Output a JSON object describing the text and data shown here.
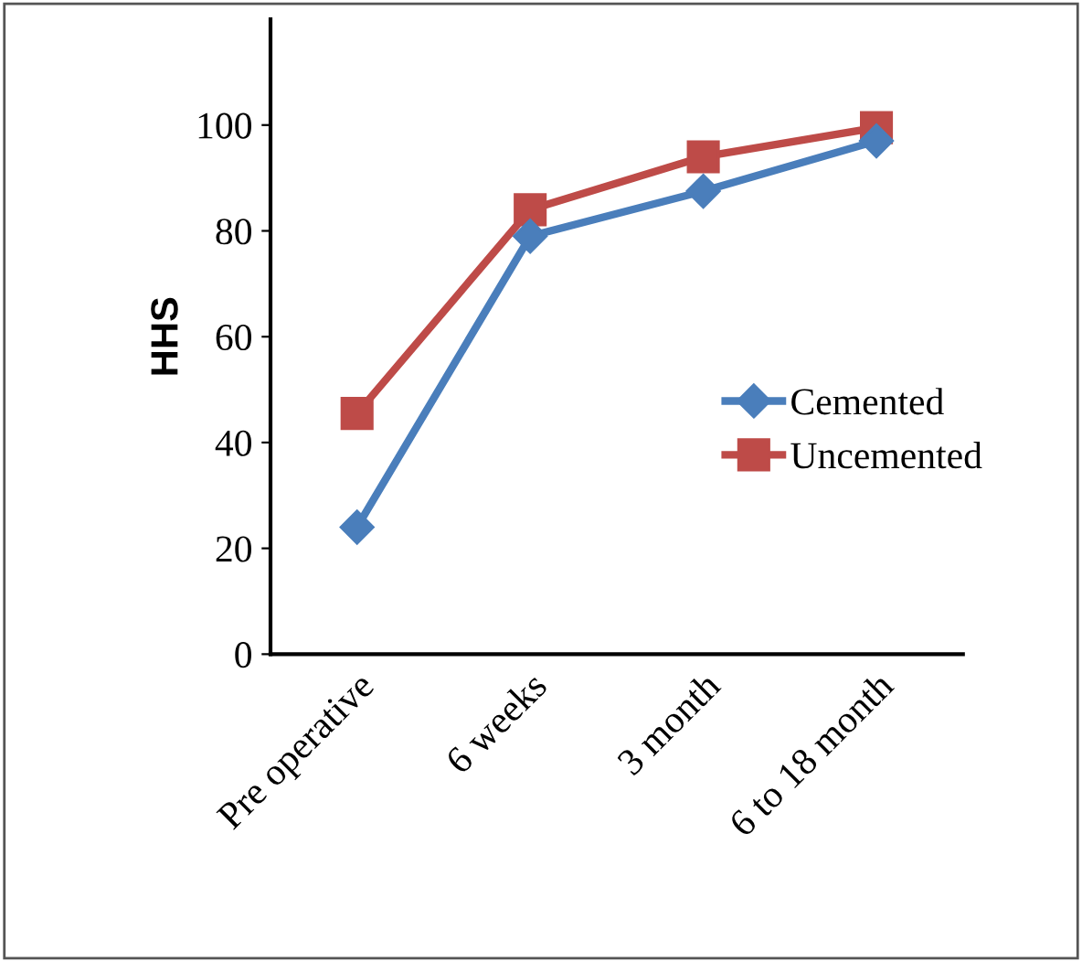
{
  "chart_data": {
    "type": "line",
    "ylabel": "HHS",
    "categories": [
      "Pre operative",
      "6 weeks",
      "3 month",
      "6 to 18 month"
    ],
    "series": [
      {
        "name": "Cemented",
        "color": "#4a7ebb",
        "marker": "diamond",
        "values": [
          24,
          79,
          87.5,
          97
        ]
      },
      {
        "name": "Uncemented",
        "color": "#be4b48",
        "marker": "square",
        "values": [
          45.5,
          84,
          94,
          99.5
        ]
      }
    ],
    "ylim": [
      0,
      120
    ],
    "yticks": [
      0,
      20,
      40,
      60,
      80,
      100
    ],
    "grid": false,
    "legend": "right"
  }
}
